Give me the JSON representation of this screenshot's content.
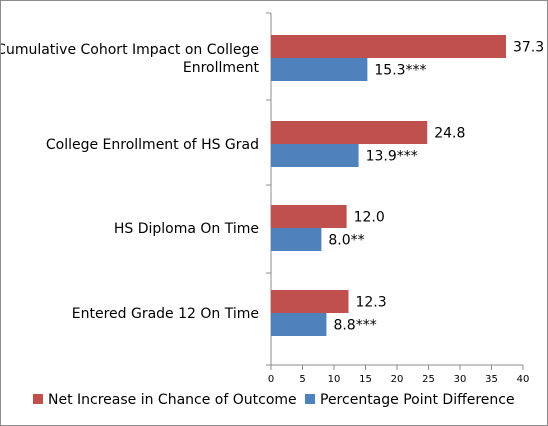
{
  "chart_data": {
    "type": "bar",
    "orientation": "horizontal",
    "title": "",
    "xlabel": "",
    "ylabel": "",
    "xlim": [
      0,
      40
    ],
    "x_ticks": [
      0,
      5,
      10,
      15,
      20,
      25,
      30,
      35,
      40
    ],
    "grid": false,
    "legend_position": "bottom",
    "categories": [
      [
        "Cumulative Cohort Impact on  College",
        "Enrollment"
      ],
      [
        "College Enrollment of HS Grad"
      ],
      [
        "HS Diploma On Time"
      ],
      [
        "Entered Grade 12 On Time"
      ]
    ],
    "series": [
      {
        "name": "Net Increase in Chance of Outcome",
        "color": "#c0504d",
        "values": [
          37.3,
          24.8,
          12.0,
          12.3
        ],
        "labels": [
          "37.3",
          "24.8",
          "12.0",
          "12.3"
        ]
      },
      {
        "name": "Percentage Point Difference",
        "color": "#4f81bd",
        "values": [
          15.3,
          13.9,
          8.0,
          8.8
        ],
        "labels": [
          "15.3***",
          "13.9***",
          "8.0**",
          "8.8***"
        ]
      }
    ]
  }
}
